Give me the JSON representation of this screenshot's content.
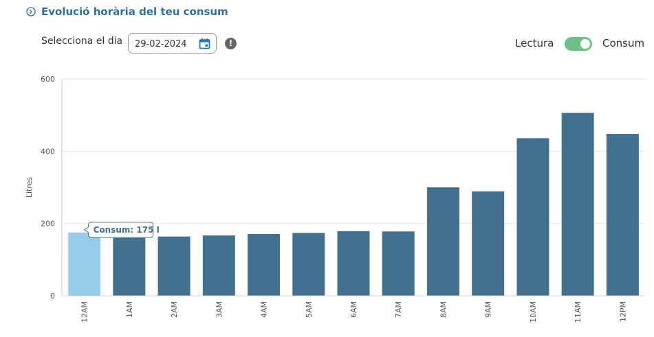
{
  "header": {
    "title": "Evolució horària del teu consum",
    "icon": "chevron-circle-icon",
    "accent": "#2f6fa0"
  },
  "date_picker": {
    "label": "Selecciona el dia",
    "value": "29-02-2024",
    "icon": "calendar-icon",
    "info_icon": "info-icon"
  },
  "toggle": {
    "left_label": "Lectura",
    "right_label": "Consum",
    "state": "Consum",
    "on_color": "#6cc088"
  },
  "chart_data": {
    "type": "bar",
    "ylabel": "Litres",
    "xlabel": "",
    "ylim": [
      0,
      600
    ],
    "yticks": [
      0,
      200,
      400,
      600
    ],
    "categories": [
      "12AM",
      "1AM",
      "2AM",
      "3AM",
      "4AM",
      "5AM",
      "6AM",
      "7AM",
      "8AM",
      "9AM",
      "10AM",
      "11AM",
      "12PM"
    ],
    "values": [
      175,
      160,
      164,
      167,
      171,
      174,
      179,
      178,
      300,
      289,
      436,
      506,
      448
    ],
    "bar_color": "#41718f",
    "highlight_color": "#99cbeb",
    "highlight_index": 0,
    "grid": true,
    "tooltip": "Consum: 175 l"
  }
}
